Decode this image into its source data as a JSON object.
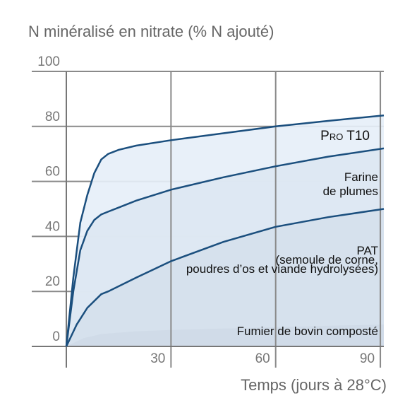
{
  "chart_data": {
    "type": "line",
    "y_title": "N minéralisé en nitrate (% N ajouté)",
    "x_title": "Temps (jours à 28°C)",
    "xlim": [
      0,
      91
    ],
    "xticks": [
      30,
      60,
      90
    ],
    "ylim": [
      0,
      100
    ],
    "yticks": [
      0,
      20,
      40,
      60,
      80,
      100
    ],
    "grid": true,
    "series": [
      {
        "name_lines": [
          "Pro T10"
        ],
        "color": "#1b4f7e",
        "fill": "#e6eef8",
        "x": [
          0,
          2,
          4,
          6,
          8,
          10,
          12,
          15,
          20,
          30,
          45,
          60,
          75,
          91
        ],
        "values": [
          0,
          25,
          45,
          55,
          63,
          68,
          70,
          71.5,
          73,
          75,
          77.5,
          80,
          82,
          84
        ]
      },
      {
        "name_lines": [
          "Farine",
          "de plumes"
        ],
        "color": "#1b4f7e",
        "fill": "#dde7f2",
        "x": [
          0,
          2,
          4,
          6,
          8,
          10,
          12,
          15,
          20,
          30,
          45,
          60,
          75,
          91
        ],
        "values": [
          0,
          20,
          35,
          42,
          46,
          48,
          49,
          50.5,
          53,
          57,
          61.5,
          65.5,
          69,
          72
        ]
      },
      {
        "name_lines": [
          "PAT",
          "(semoule de corne,",
          "poudres d’os et viande hydrolysées)"
        ],
        "color": "#1b4f7e",
        "fill": "#d5e0ec",
        "x": [
          0,
          3,
          6,
          10,
          12,
          20,
          30,
          45,
          60,
          75,
          91
        ],
        "values": [
          0,
          8,
          14,
          19,
          20,
          25,
          31,
          38,
          43.5,
          47,
          50
        ]
      },
      {
        "name_lines": [
          "Fumier de bovin composté"
        ],
        "color": "none",
        "fill": "#cfdae7",
        "x": [
          0,
          5,
          10,
          20,
          30,
          60,
          91
        ],
        "values": [
          0,
          3,
          4.5,
          5.5,
          6,
          7,
          8
        ]
      }
    ]
  }
}
